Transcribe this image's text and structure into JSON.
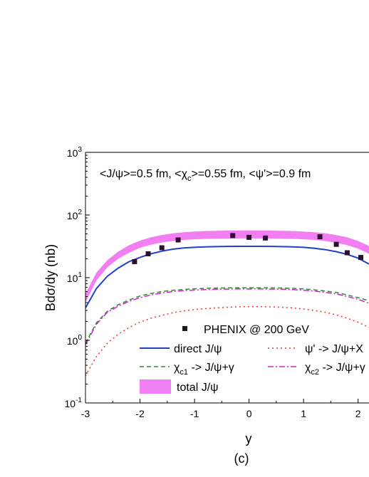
{
  "chart_data": {
    "type": "line",
    "yscale": "log",
    "xlim": [
      -3,
      2.2
    ],
    "ylim": [
      0.1,
      1000
    ],
    "xticks": [
      -3,
      -2,
      -1,
      0,
      1,
      2
    ],
    "xtick_labels": [
      "-3",
      "-2",
      "-1",
      "0",
      "1",
      "2"
    ],
    "ytick_labels": [
      {
        "value": 0.1,
        "base": "10",
        "exp": "-1"
      },
      {
        "value": 1,
        "base": "10",
        "exp": "0"
      },
      {
        "value": 10,
        "base": "10",
        "exp": "1"
      },
      {
        "value": 100,
        "base": "10",
        "exp": "2"
      },
      {
        "value": 1000,
        "base": "10",
        "exp": "3"
      }
    ],
    "ylabel": "Bdσ/dy (nb)",
    "xlabel": "y",
    "panel_label": "(c)",
    "annotation": {
      "p1": "<J/ψ>=0.5 fm, <χ",
      "s1": "c",
      "p2": ">=0.55 fm, <ψ'>=0.9 fm"
    },
    "legend": {
      "data": "PHENIX @ 200 GeV",
      "direct": "direct J/ψ",
      "psip": "ψ' ->  J/ψ+X",
      "chic1_a": "χ",
      "chic1_sub": "c1",
      "chic1_b": " ->  J/ψ+γ",
      "chic2_a": "χ",
      "chic2_sub": "c2",
      "chic2_b": " ->  J/ψ+γ",
      "total": "total J/ψ"
    },
    "colors": {
      "direct": "#1f3fcc",
      "chic1": "#2e8b2e",
      "chic2": "#cc22cc",
      "psip": "#ee3333",
      "band": "#f27ff2",
      "points": "#2b1030"
    },
    "x": [
      -3,
      -2.8,
      -2.6,
      -2.4,
      -2.2,
      -2,
      -1.8,
      -1.6,
      -1.4,
      -1.2,
      -1,
      -0.8,
      -0.6,
      -0.4,
      -0.2,
      0,
      0.2,
      0.4,
      0.6,
      0.8,
      1,
      1.2,
      1.4,
      1.6,
      1.8,
      2,
      2.2
    ],
    "series": [
      {
        "key": "direct",
        "dash": "",
        "values": [
          3.3,
          6.7,
          10.5,
          14.2,
          18.0,
          21.0,
          24.0,
          26.5,
          28.5,
          29.8,
          30.5,
          31.0,
          31.3,
          31.5,
          31.6,
          31.6,
          31.6,
          31.5,
          31.3,
          31.0,
          30.5,
          29.5,
          28.0,
          26.0,
          23.5,
          20.5,
          16.5
        ]
      },
      {
        "key": "chic1",
        "dash": "6,4",
        "values": [
          0.9,
          1.9,
          2.9,
          3.7,
          4.4,
          5.1,
          5.6,
          6.0,
          6.3,
          6.5,
          6.65,
          6.75,
          6.82,
          6.88,
          6.9,
          6.9,
          6.9,
          6.88,
          6.82,
          6.75,
          6.6,
          6.4,
          6.1,
          5.8,
          5.3,
          4.8,
          4.3
        ]
      },
      {
        "key": "chic2",
        "dash": "8,3,2,3",
        "values": [
          0.85,
          1.8,
          2.8,
          3.5,
          4.2,
          4.8,
          5.3,
          5.7,
          6.0,
          6.2,
          6.35,
          6.45,
          6.52,
          6.57,
          6.6,
          6.6,
          6.6,
          6.57,
          6.52,
          6.45,
          6.3,
          6.1,
          5.8,
          5.5,
          5.0,
          4.5,
          3.9
        ]
      },
      {
        "key": "psip",
        "dash": "2,4",
        "values": [
          0.27,
          0.55,
          0.9,
          1.25,
          1.6,
          1.95,
          2.25,
          2.5,
          2.75,
          2.95,
          3.1,
          3.2,
          3.3,
          3.37,
          3.42,
          3.45,
          3.45,
          3.42,
          3.37,
          3.3,
          3.15,
          3.0,
          2.8,
          2.55,
          2.25,
          1.95,
          1.6
        ]
      }
    ],
    "band": {
      "low": [
        4.0,
        9.0,
        14.5,
        20.0,
        25.0,
        30.0,
        33.5,
        36.5,
        38.5,
        40.0,
        41.0,
        41.6,
        42.0,
        42.2,
        42.3,
        42.3,
        42.3,
        42.2,
        42.0,
        41.6,
        41.0,
        40.0,
        38.5,
        36.0,
        33.0,
        29.0,
        24.0
      ],
      "high": [
        5.5,
        12.0,
        19.0,
        26.0,
        33.0,
        39.0,
        44.0,
        48.0,
        51.0,
        53.0,
        54.5,
        55.5,
        56.0,
        56.5,
        56.7,
        56.8,
        56.7,
        56.5,
        56.0,
        55.5,
        54.5,
        53.0,
        51.0,
        48.0,
        44.0,
        38.5,
        32.0
      ]
    },
    "points": {
      "x": [
        -2.1,
        -1.85,
        -1.6,
        -1.3,
        -0.3,
        0,
        0.3,
        1.3,
        1.6,
        1.8,
        2.05
      ],
      "y": [
        18,
        24,
        30,
        40,
        47,
        44,
        43,
        45,
        34,
        25,
        21
      ]
    }
  }
}
